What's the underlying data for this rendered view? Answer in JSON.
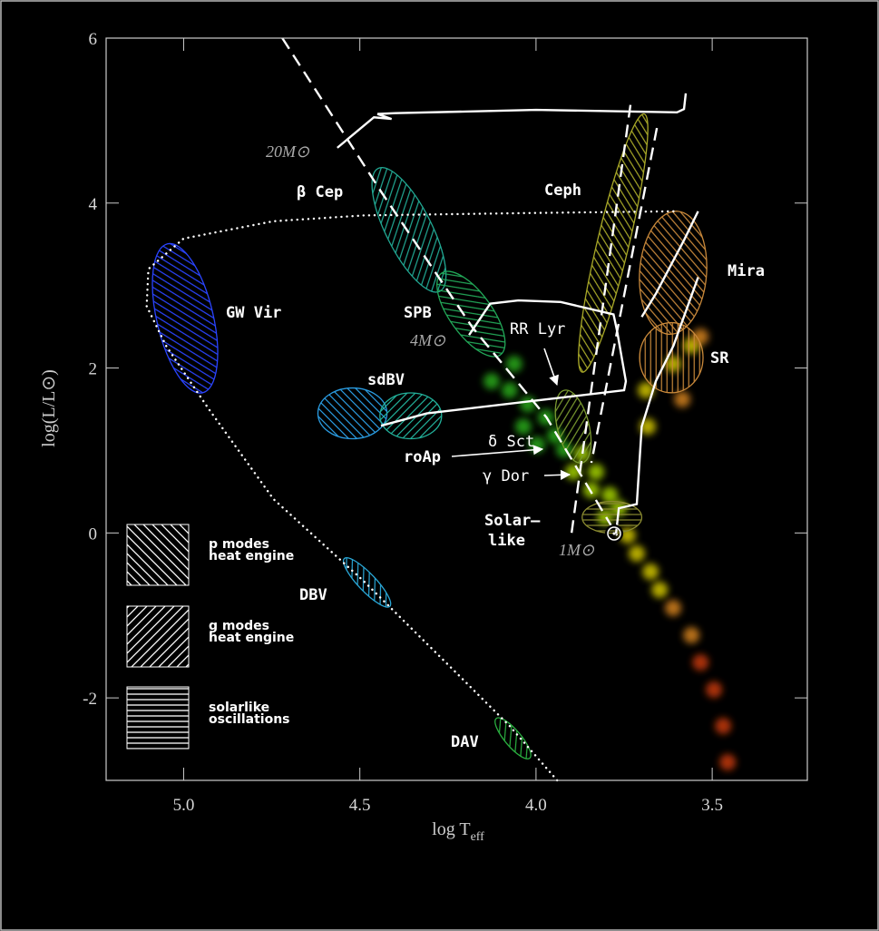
{
  "chart_data": {
    "type": "scatter",
    "ylabel": "log(L/L⊙)",
    "xlabel": {
      "main": "log T",
      "sub": "eff"
    },
    "xlim": [
      5.22,
      3.23
    ],
    "ylim": [
      -3,
      6
    ],
    "xticks": [
      {
        "value": 5,
        "label": "5.0"
      },
      4.5,
      {
        "value": 4,
        "label": "4.0"
      },
      3.5
    ],
    "yticks": [
      6,
      4,
      2,
      0,
      -2
    ],
    "groups": [
      {
        "color": "#2fc21f",
        "x": [
          4.075,
          4.023,
          4.036,
          3.972,
          3.946,
          3.997,
          3.92,
          4.126,
          4.062
        ],
        "y": [
          1.73,
          1.56,
          1.29,
          1.4,
          1.18,
          1.07,
          1.01,
          1.84,
          2.05
        ]
      },
      {
        "color": "#bdf200",
        "x": [
          3.869,
          3.83,
          3.843,
          3.791,
          3.765,
          3.894,
          3.804
        ],
        "y": [
          0.96,
          0.74,
          0.52,
          0.46,
          0.3,
          0.74,
          0.19
        ]
      },
      {
        "color": "#f2e400",
        "x": [
          3.74,
          3.714,
          3.675,
          3.688,
          3.683,
          3.611,
          3.559,
          3.649
        ],
        "y": [
          -0.03,
          -0.25,
          -0.47,
          1.73,
          1.29,
          2.05,
          2.27,
          -0.69
        ]
      },
      {
        "color": "#f29422",
        "x": [
          3.611,
          3.559,
          3.585,
          3.533
        ],
        "y": [
          -0.91,
          -1.24,
          1.62,
          2.38
        ]
      },
      {
        "color": "#e2420f",
        "x": [
          3.533,
          3.495,
          3.469,
          3.456
        ],
        "y": [
          -1.57,
          -1.9,
          -2.34,
          -2.78
        ]
      }
    ],
    "tracks": [
      {
        "style": "dashed",
        "x": [
          4.72,
          4.44,
          4.18,
          3.97,
          3.77
        ],
        "y": [
          6.0,
          4.14,
          2.49,
          1.4,
          -0.03
        ]
      },
      {
        "style": "dashed",
        "x": [
          3.732,
          3.9
        ],
        "y": [
          5.19,
          -0.03
        ]
      },
      {
        "style": "dashed",
        "x": [
          3.657,
          3.843
        ],
        "y": [
          4.91,
          0.85
        ]
      },
      {
        "style": "solid",
        "x": [
          4.564,
          4.46,
          4.41,
          4.45,
          4.4,
          4.0,
          3.6,
          3.58,
          3.575
        ],
        "y": [
          4.67,
          5.04,
          5.02,
          5.08,
          5.09,
          5.13,
          5.1,
          5.14,
          5.33
        ]
      },
      {
        "style": "solid",
        "x": [
          4.19,
          4.13,
          4.05,
          3.93,
          3.78,
          3.77,
          3.745,
          3.75,
          3.97,
          4.31,
          4.44,
          null,
          3.7,
          3.66,
          3.58,
          3.54
        ],
        "y": [
          2.4,
          2.78,
          2.82,
          2.8,
          2.65,
          2.45,
          1.84,
          1.73,
          1.62,
          1.45,
          1.3,
          null,
          2.62,
          2.9,
          3.55,
          3.9
        ]
      },
      {
        "style": "solid",
        "x": [
          3.773,
          3.765,
          3.714,
          3.7,
          3.66,
          3.61,
          3.54
        ],
        "y": [
          -0.01,
          0.3,
          0.35,
          1.29,
          1.84,
          2.27,
          3.1
        ]
      },
      {
        "style": "dotted",
        "x": [
          3.61,
          4.0,
          4.49,
          4.745,
          5.0,
          5.1,
          5.105,
          5.05,
          4.93,
          4.745,
          4.49,
          4.23,
          4.075,
          3.94
        ],
        "y": [
          3.9,
          3.88,
          3.85,
          3.78,
          3.57,
          3.2,
          2.75,
          2.27,
          1.51,
          0.41,
          -0.58,
          -1.68,
          -2.34,
          -3.0
        ]
      }
    ],
    "regions": [
      {
        "color": "#2a44ff",
        "hatch": "g",
        "axis": [
          [
            5.046,
            3.505
          ],
          [
            4.946,
            1.7
          ]
        ],
        "width": 0.16
      },
      {
        "color": "#21a893",
        "hatch": "p",
        "axis": [
          [
            4.448,
            4.42
          ],
          [
            4.273,
            2.93
          ]
        ],
        "width": 0.13
      },
      {
        "color": "#22a858",
        "hatch": "g",
        "axis": [
          [
            4.268,
            3.15
          ],
          [
            4.101,
            2.16
          ]
        ],
        "width": 0.12
      },
      {
        "color": "#2a9be0",
        "hatch": "p",
        "axis": [
          [
            4.619,
            1.45
          ],
          [
            4.423,
            1.45
          ]
        ],
        "width": 0.144
      },
      {
        "color": "#22b09a",
        "hatch": "g",
        "axis": [
          [
            4.443,
            1.42
          ],
          [
            4.268,
            1.42
          ]
        ],
        "width": 0.13
      },
      {
        "color": "#a8a828",
        "hatch": "g",
        "axis": [
          [
            3.693,
            5.08
          ],
          [
            3.869,
            1.95
          ]
        ],
        "width": 0.09
      },
      {
        "color": "#c8883a",
        "hatch": "g",
        "axis": [
          [
            3.598,
            3.9
          ],
          [
            3.624,
            2.41
          ]
        ],
        "width": 0.19
      },
      {
        "color": "#c8883a",
        "hatch": "s",
        "axis": [
          [
            3.616,
            2.55
          ],
          [
            3.616,
            1.7
          ]
        ],
        "width": 0.18
      },
      {
        "color": "#7a9a30",
        "hatch": "p",
        "axis": [
          [
            3.92,
            1.73
          ],
          [
            3.869,
            0.85
          ]
        ],
        "width": 0.09
      },
      {
        "color": "#8a8a30",
        "hatch": "s",
        "axis": [
          [
            3.869,
            0.19
          ],
          [
            3.7,
            0.19
          ]
        ],
        "width": 0.09
      },
      {
        "color": "#2aa8d8",
        "hatch": "p",
        "axis": [
          [
            4.544,
            -0.31
          ],
          [
            4.415,
            -0.89
          ]
        ],
        "width": 0.05
      },
      {
        "color": "#2ab040",
        "hatch": "p",
        "axis": [
          [
            4.113,
            -2.25
          ],
          [
            4.018,
            -2.73
          ]
        ],
        "width": 0.046
      }
    ],
    "annotations": [
      "GW Vir",
      "β Cep",
      "SPB",
      "sdBV",
      "Ceph",
      "Mira",
      "SR",
      "RR Lyr",
      "δ Sct",
      "roAp",
      "γ Dor",
      "Solar–",
      "like",
      "DBV",
      "DAV"
    ],
    "masses": [
      "20M⊙",
      "4M⊙",
      "1M⊙"
    ],
    "legend": [
      [
        "p modes",
        "heat engine"
      ],
      [
        "g modes",
        "heat engine"
      ],
      [
        "solarlike",
        "oscillations"
      ]
    ]
  }
}
